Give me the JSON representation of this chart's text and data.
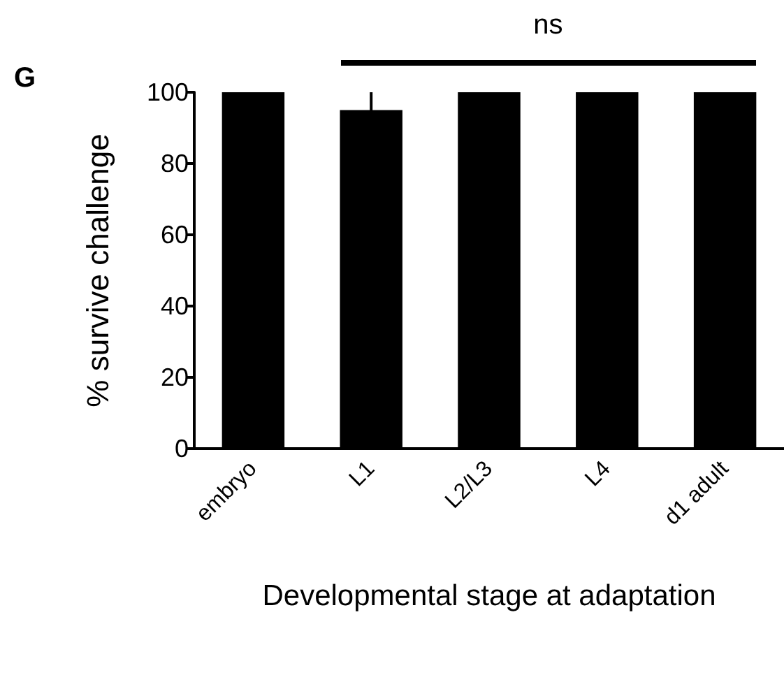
{
  "chart_data": {
    "type": "bar",
    "categories": [
      "embryo",
      "L1",
      "L2/L3",
      "L4",
      "d1 adult"
    ],
    "values": [
      100,
      95,
      100,
      100,
      100
    ],
    "errors": [
      null,
      5,
      null,
      null,
      null
    ],
    "color": "#000000",
    "xlabel": "Developmental stage at adaptation",
    "ylabel": "% survive challenge",
    "ylim": [
      0,
      100
    ],
    "yticks": [
      0,
      20,
      40,
      60,
      80,
      100
    ],
    "annotations": [
      "G",
      "ns"
    ]
  }
}
